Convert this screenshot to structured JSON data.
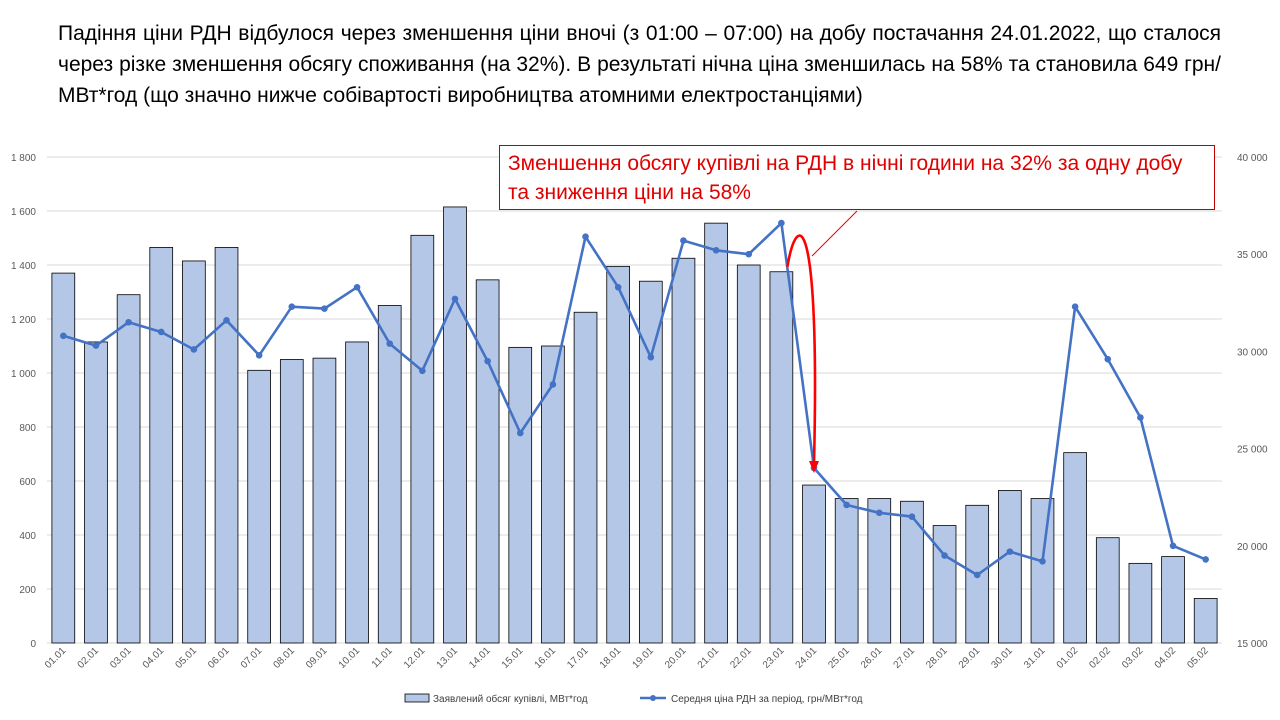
{
  "headline": "Падіння ціни РДН відбулося через зменшення ціни вночі (з 01:00 – 07:00) на добу постачання 24.01.2022, що сталося через різке зменшення обсягу споживання (на 32%). В результаті нічна ціна зменшилась на 58% та становила 649 грн/МВт*год (що значно нижче собівартості виробництва атомними електростанціями)",
  "callout": "Зменшення обсягу купівлі на РДН в нічні години на 32% за одну добу та зниження ціни на 58%",
  "colors": {
    "bar_fill": "#b4c7e7",
    "bar_stroke": "#000000",
    "line": "#4472c4",
    "callout": "#e00000",
    "arrow": "#ff0000"
  },
  "chart_data": {
    "type": "bar",
    "categories": [
      "01.01",
      "02.01",
      "03.01",
      "04.01",
      "05.01",
      "06.01",
      "07.01",
      "08.01",
      "09.01",
      "10.01",
      "11.01",
      "12.01",
      "13.01",
      "14.01",
      "15.01",
      "16.01",
      "17.01",
      "18.01",
      "19.01",
      "20.01",
      "21.01",
      "22.01",
      "23.01",
      "24.01",
      "25.01",
      "26.01",
      "27.01",
      "28.01",
      "29.01",
      "30.01",
      "31.01",
      "01.02",
      "02.02",
      "03.02",
      "04.02",
      "05.02"
    ],
    "series": [
      {
        "name": "Заявлений обсяг купівлі, МВт*год",
        "axis": "left",
        "type": "bar",
        "values": [
          1370,
          1115,
          1290,
          1465,
          1415,
          1465,
          1010,
          1050,
          1055,
          1115,
          1250,
          1510,
          1615,
          1345,
          1095,
          1100,
          1225,
          1395,
          1340,
          1425,
          1555,
          1400,
          1375,
          585,
          535,
          535,
          525,
          435,
          510,
          565,
          535,
          705,
          390,
          295,
          320,
          165
        ]
      },
      {
        "name": "Середня ціна РДН за період, грн/МВт*год",
        "axis": "right",
        "type": "line",
        "values": [
          30800,
          30300,
          31500,
          31000,
          30100,
          31600,
          29800,
          32300,
          32200,
          33300,
          30400,
          29000,
          32700,
          29500,
          25800,
          28300,
          35900,
          33300,
          29700,
          35700,
          35200,
          35000,
          36600,
          24000,
          22100,
          21700,
          21500,
          19500,
          18500,
          19700,
          19200,
          32300,
          29600,
          26600,
          20000,
          19300
        ]
      }
    ],
    "y_left": {
      "ylim": [
        0,
        1800
      ],
      "ticks": [
        "0",
        "200",
        "400",
        "600",
        "800",
        "1 000",
        "1 200",
        "1 400",
        "1 600",
        "1 800"
      ]
    },
    "y_right": {
      "ylim": [
        15000,
        40000
      ],
      "ticks": [
        "15 000",
        "20 000",
        "25 000",
        "30 000",
        "35 000",
        "40 000"
      ]
    },
    "grid": true,
    "legend": "bottom"
  }
}
